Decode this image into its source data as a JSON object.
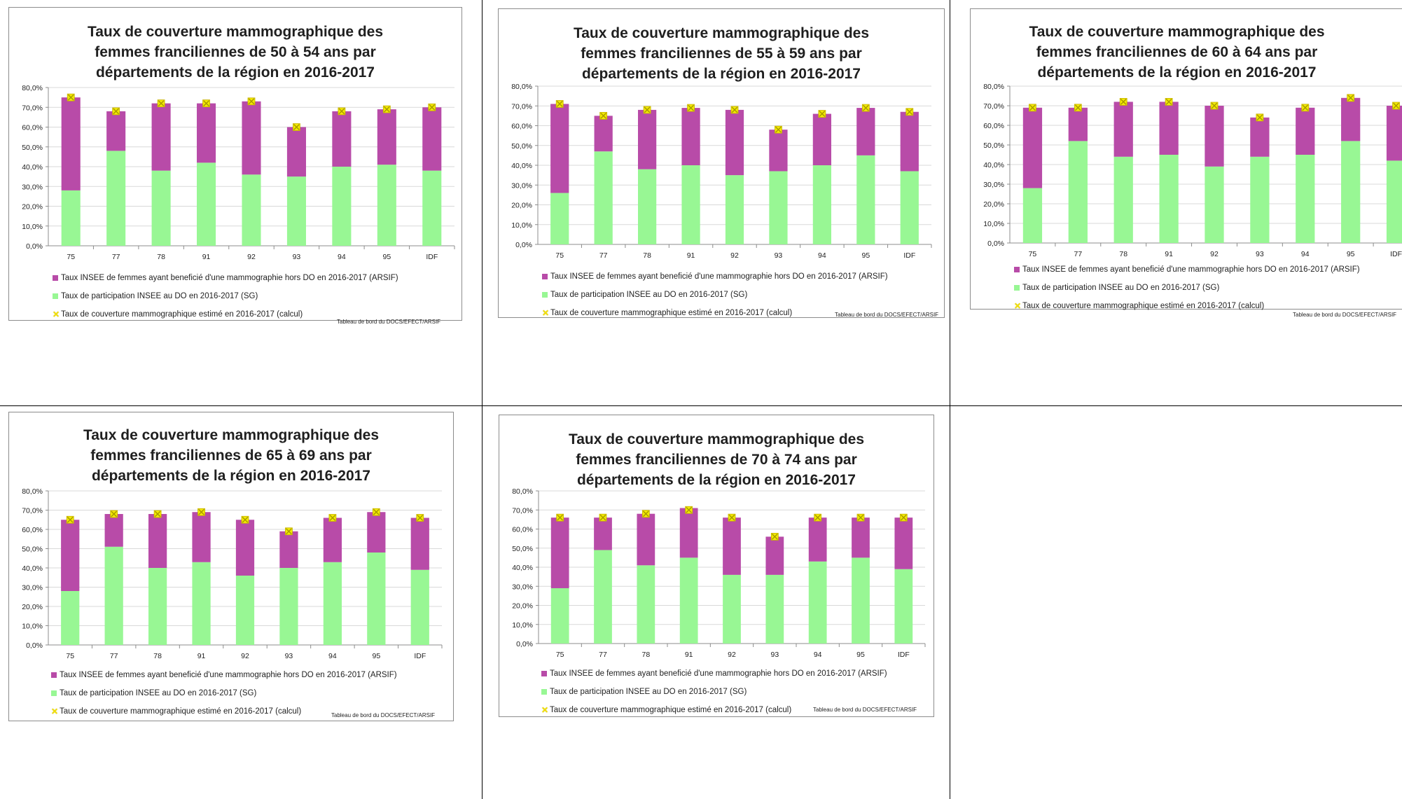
{
  "colors": {
    "hors_do": "#b84ba8",
    "do": "#98f794",
    "marker": "#f2ea00",
    "marker_border": "#c7b200"
  },
  "legend": {
    "hors_do": "Taux INSEE de femmes ayant beneficié d'une mammographie hors DO en 2016-2017 (ARSIF)",
    "do": "Taux de participation INSEE au DO en 2016-2017 (SG)",
    "total": "Taux de couverture mammographique estimé en 2016-2017 (calcul)"
  },
  "source": "Tableau de bord du DOCS/EFECT/ARSIF",
  "chart_data": [
    {
      "type": "bar",
      "title_lines": [
        "Taux de couverture mammographique des",
        "femmes franciliennes de 50 à 54 ans par",
        "départements de la région en 2016-2017"
      ],
      "categories": [
        "75",
        "77",
        "78",
        "91",
        "92",
        "93",
        "94",
        "95",
        "IDF"
      ],
      "y_ticks": [
        "0,0%",
        "10,0%",
        "20,0%",
        "30,0%",
        "40,0%",
        "50,0%",
        "60,0%",
        "70,0%",
        "80,0%"
      ],
      "ylim": [
        0,
        80
      ],
      "series": [
        {
          "name": "Taux de participation INSEE au DO en 2016-2017 (SG)",
          "values": [
            28,
            48,
            38,
            42,
            36,
            35,
            40,
            41,
            38
          ]
        },
        {
          "name": "Taux INSEE de femmes ayant beneficié d'une mammographie hors DO en 2016-2017 (ARSIF)",
          "values": [
            47,
            20,
            34,
            30,
            37,
            25,
            28,
            28,
            32
          ]
        },
        {
          "name": "Taux de couverture mammographique estimé en 2016-2017 (calcul)",
          "values": [
            75,
            68,
            72,
            72,
            73,
            60,
            68,
            69,
            70
          ]
        }
      ]
    },
    {
      "type": "bar",
      "title_lines": [
        "Taux de couverture mammographique des",
        "femmes franciliennes de 55 à 59 ans par",
        "départements de la région en 2016-2017"
      ],
      "categories": [
        "75",
        "77",
        "78",
        "91",
        "92",
        "93",
        "94",
        "95",
        "IDF"
      ],
      "y_ticks": [
        "0,0%",
        "10,0%",
        "20,0%",
        "30,0%",
        "40,0%",
        "50,0%",
        "60,0%",
        "70,0%",
        "80,0%"
      ],
      "ylim": [
        0,
        80
      ],
      "series": [
        {
          "name": "Taux de participation INSEE au DO en 2016-2017 (SG)",
          "values": [
            26,
            47,
            38,
            40,
            35,
            37,
            40,
            45,
            37
          ]
        },
        {
          "name": "Taux INSEE de femmes ayant beneficié d'une mammographie hors DO en 2016-2017 (ARSIF)",
          "values": [
            45,
            18,
            30,
            29,
            33,
            21,
            26,
            24,
            30
          ]
        },
        {
          "name": "Taux de couverture mammographique estimé en 2016-2017 (calcul)",
          "values": [
            71,
            65,
            68,
            69,
            68,
            58,
            66,
            69,
            67
          ]
        }
      ]
    },
    {
      "type": "bar",
      "title_lines": [
        "Taux de couverture mammographique des",
        "femmes franciliennes de 60 à 64 ans par",
        "départements de la région en 2016-2017"
      ],
      "categories": [
        "75",
        "77",
        "78",
        "91",
        "92",
        "93",
        "94",
        "95",
        "IDF"
      ],
      "y_ticks": [
        "0,0%",
        "10,0%",
        "20,0%",
        "30,0%",
        "40,0%",
        "50,0%",
        "60,0%",
        "70,0%",
        "80,0%"
      ],
      "ylim": [
        0,
        80
      ],
      "series": [
        {
          "name": "Taux de participation INSEE au DO en 2016-2017 (SG)",
          "values": [
            28,
            52,
            44,
            45,
            39,
            44,
            45,
            52,
            42
          ]
        },
        {
          "name": "Taux INSEE de femmes ayant beneficié d'une mammographie hors DO en 2016-2017 (ARSIF)",
          "values": [
            41,
            17,
            28,
            27,
            31,
            20,
            24,
            22,
            28
          ]
        },
        {
          "name": "Taux de couverture mammographique estimé en 2016-2017 (calcul)",
          "values": [
            69,
            69,
            72,
            72,
            70,
            64,
            69,
            74,
            70
          ]
        }
      ]
    },
    {
      "type": "bar",
      "title_lines": [
        "Taux de couverture mammographique des",
        "femmes franciliennes de 65 à 69 ans par",
        "départements de la région en 2016-2017"
      ],
      "categories": [
        "75",
        "77",
        "78",
        "91",
        "92",
        "93",
        "94",
        "95",
        "IDF"
      ],
      "y_ticks": [
        "0,0%",
        "10,0%",
        "20,0%",
        "30,0%",
        "40,0%",
        "50,0%",
        "60,0%",
        "70,0%",
        "80,0%"
      ],
      "ylim": [
        0,
        80
      ],
      "series": [
        {
          "name": "Taux de participation INSEE au DO en 2016-2017 (SG)",
          "values": [
            28,
            51,
            40,
            43,
            36,
            40,
            43,
            48,
            39
          ]
        },
        {
          "name": "Taux INSEE de femmes ayant beneficié d'une mammographie hors DO en 2016-2017 (ARSIF)",
          "values": [
            37,
            17,
            28,
            26,
            29,
            19,
            23,
            21,
            27
          ]
        },
        {
          "name": "Taux de couverture mammographique estimé en 2016-2017 (calcul)",
          "values": [
            65,
            68,
            68,
            69,
            65,
            59,
            66,
            69,
            66
          ]
        }
      ]
    },
    {
      "type": "bar",
      "title_lines": [
        "Taux de couverture mammographique des",
        "femmes franciliennes de 70 à 74 ans par",
        "départements de la région en 2016-2017"
      ],
      "categories": [
        "75",
        "77",
        "78",
        "91",
        "92",
        "93",
        "94",
        "95",
        "IDF"
      ],
      "y_ticks": [
        "0,0%",
        "10,0%",
        "20,0%",
        "30,0%",
        "40,0%",
        "50,0%",
        "60,0%",
        "70,0%",
        "80,0%"
      ],
      "ylim": [
        0,
        80
      ],
      "series": [
        {
          "name": "Taux de participation INSEE au DO en 2016-2017 (SG)",
          "values": [
            29,
            49,
            41,
            45,
            36,
            36,
            43,
            45,
            39
          ]
        },
        {
          "name": "Taux INSEE de femmes ayant beneficié d'une mammographie hors DO en 2016-2017 (ARSIF)",
          "values": [
            37,
            17,
            27,
            26,
            30,
            20,
            23,
            21,
            27
          ]
        },
        {
          "name": "Taux de couverture mammographique estimé en 2016-2017 (calcul)",
          "values": [
            66,
            66,
            68,
            70,
            66,
            56,
            66,
            66,
            66
          ]
        }
      ]
    }
  ]
}
